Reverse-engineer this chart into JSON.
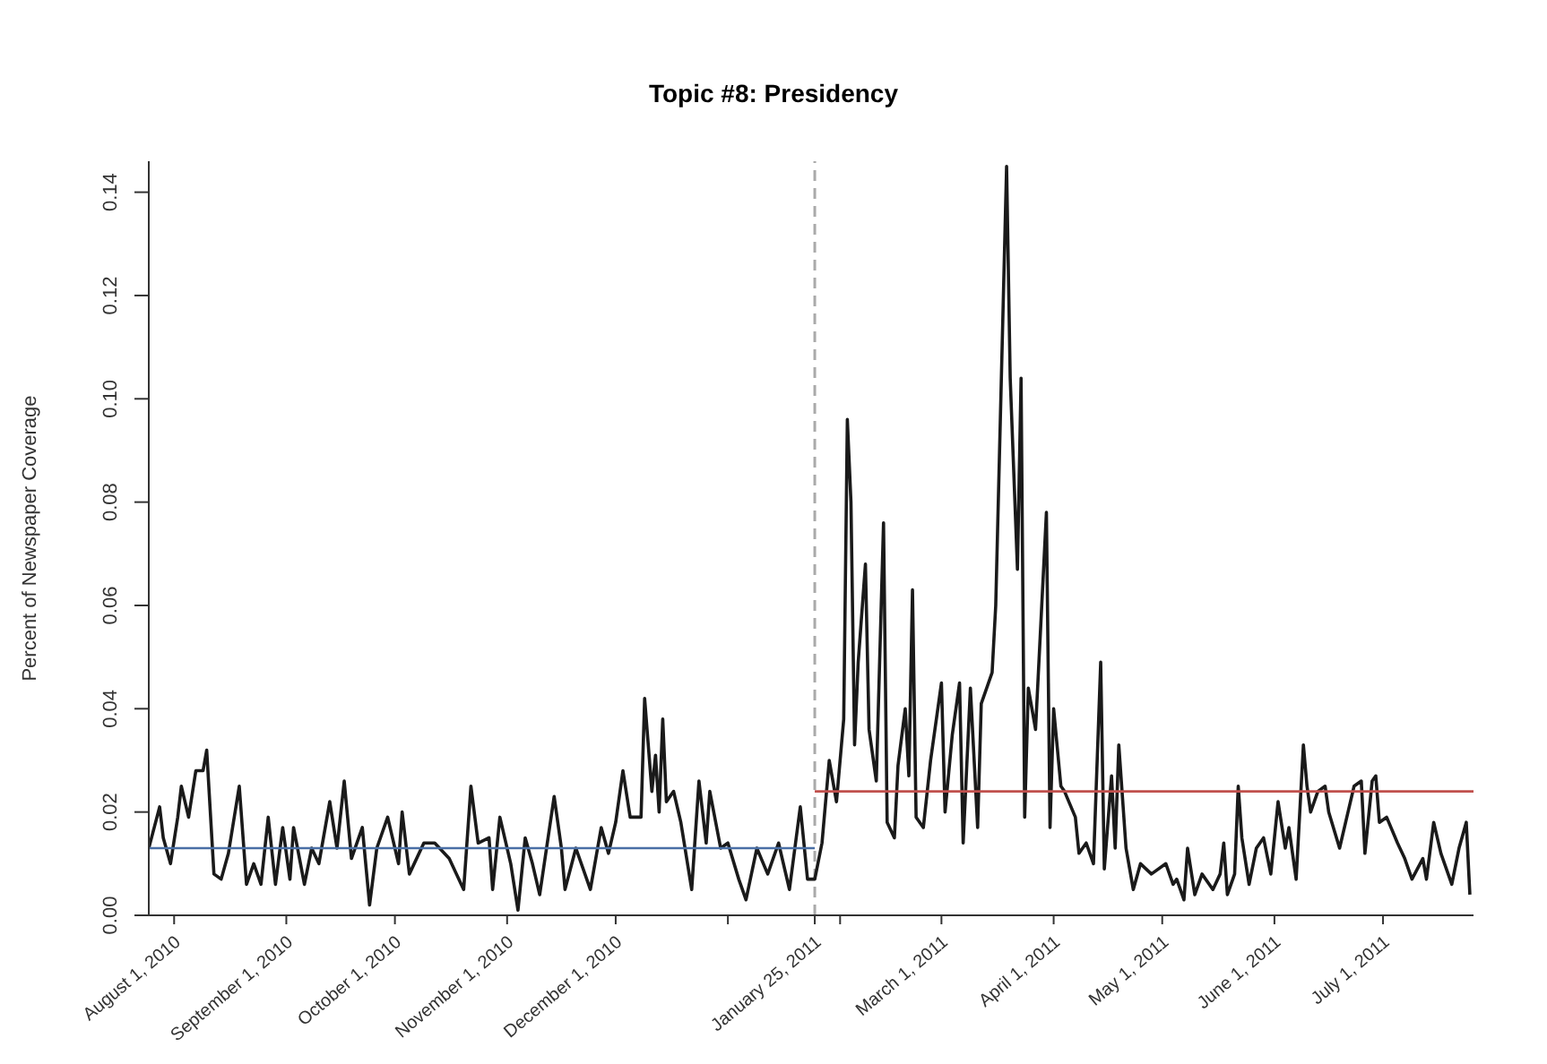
{
  "chart_data": {
    "type": "line",
    "title": "Topic #8: Presidency",
    "ylabel": "Percent of Newspaper Coverage",
    "xlim": [
      "2010-07-25",
      "2011-07-26"
    ],
    "xticks": [
      {
        "value": "2010-08-01",
        "label": "August 1, 2010"
      },
      {
        "value": "2010-09-01",
        "label": "September 1, 2010"
      },
      {
        "value": "2010-10-01",
        "label": "October 1, 2010"
      },
      {
        "value": "2010-11-01",
        "label": "November 1, 2010"
      },
      {
        "value": "2010-12-01",
        "label": "December 1, 2010"
      },
      {
        "value": "2011-01-01",
        "label": null
      },
      {
        "value": "2011-01-25",
        "label": "January 25, 2011"
      },
      {
        "value": "2011-02-01",
        "label": null
      },
      {
        "value": "2011-03-01",
        "label": "March 1, 2011"
      },
      {
        "value": "2011-04-01",
        "label": "April 1, 2011"
      },
      {
        "value": "2011-05-01",
        "label": "May 1, 2011"
      },
      {
        "value": "2011-06-01",
        "label": "June 1, 2011"
      },
      {
        "value": "2011-07-01",
        "label": "July 1, 2011"
      }
    ],
    "ylim": [
      0,
      0.146
    ],
    "yticks": [
      {
        "value": 0,
        "label": "0.00"
      },
      {
        "value": 0.02,
        "label": "0.02"
      },
      {
        "value": 0.04,
        "label": "0.04"
      },
      {
        "value": 0.06,
        "label": "0.06"
      },
      {
        "value": 0.08,
        "label": "0.08"
      },
      {
        "value": 0.1,
        "label": "0.10"
      },
      {
        "value": 0.12,
        "label": "0.12"
      },
      {
        "value": 0.14,
        "label": "0.14"
      }
    ],
    "series": [
      {
        "color": "#1a1a1a",
        "x": [
          "2010-07-25",
          "2010-07-28",
          "2010-07-29",
          "2010-07-31",
          "2010-08-02",
          "2010-08-03",
          "2010-08-05",
          "2010-08-07",
          "2010-08-09",
          "2010-08-10",
          "2010-08-12",
          "2010-08-14",
          "2010-08-16",
          "2010-08-19",
          "2010-08-21",
          "2010-08-23",
          "2010-08-25",
          "2010-08-27",
          "2010-08-29",
          "2010-08-31",
          "2010-09-02",
          "2010-09-03",
          "2010-09-06",
          "2010-09-08",
          "2010-09-10",
          "2010-09-13",
          "2010-09-15",
          "2010-09-17",
          "2010-09-19",
          "2010-09-22",
          "2010-09-24",
          "2010-09-26",
          "2010-09-29",
          "2010-10-02",
          "2010-10-03",
          "2010-10-05",
          "2010-10-09",
          "2010-10-12",
          "2010-10-16",
          "2010-10-20",
          "2010-10-22",
          "2010-10-24",
          "2010-10-27",
          "2010-10-28",
          "2010-10-30",
          "2010-11-02",
          "2010-11-04",
          "2010-11-06",
          "2010-11-08",
          "2010-11-10",
          "2010-11-14",
          "2010-11-16",
          "2010-11-17",
          "2010-11-20",
          "2010-11-24",
          "2010-11-26",
          "2010-11-27",
          "2010-11-29",
          "2010-12-01",
          "2010-12-03",
          "2010-12-05",
          "2010-12-08",
          "2010-12-09",
          "2010-12-11",
          "2010-12-12",
          "2010-12-13",
          "2010-12-14",
          "2010-12-15",
          "2010-12-17",
          "2010-12-19",
          "2010-12-22",
          "2010-12-24",
          "2010-12-26",
          "2010-12-27",
          "2010-12-30",
          "2011-01-01",
          "2011-01-04",
          "2011-01-06",
          "2011-01-09",
          "2011-01-12",
          "2011-01-15",
          "2011-01-18",
          "2011-01-21",
          "2011-01-23",
          "2011-01-25",
          "2011-01-27",
          "2011-01-29",
          "2011-01-31",
          "2011-02-02",
          "2011-02-03",
          "2011-02-04",
          "2011-02-05",
          "2011-02-06",
          "2011-02-08",
          "2011-02-09",
          "2011-02-11",
          "2011-02-13",
          "2011-02-14",
          "2011-02-16",
          "2011-02-17",
          "2011-02-19",
          "2011-02-20",
          "2011-02-21",
          "2011-02-22",
          "2011-02-24",
          "2011-02-26",
          "2011-03-01",
          "2011-03-02",
          "2011-03-04",
          "2011-03-06",
          "2011-03-07",
          "2011-03-09",
          "2011-03-11",
          "2011-03-12",
          "2011-03-15",
          "2011-03-16",
          "2011-03-19",
          "2011-03-20",
          "2011-03-22",
          "2011-03-23",
          "2011-03-24",
          "2011-03-25",
          "2011-03-27",
          "2011-03-30",
          "2011-03-31",
          "2011-04-01",
          "2011-04-03",
          "2011-04-04",
          "2011-04-07",
          "2011-04-08",
          "2011-04-10",
          "2011-04-12",
          "2011-04-14",
          "2011-04-15",
          "2011-04-17",
          "2011-04-18",
          "2011-04-19",
          "2011-04-21",
          "2011-04-23",
          "2011-04-25",
          "2011-04-28",
          "2011-05-02",
          "2011-05-04",
          "2011-05-05",
          "2011-05-07",
          "2011-05-08",
          "2011-05-10",
          "2011-05-12",
          "2011-05-15",
          "2011-05-17",
          "2011-05-18",
          "2011-05-19",
          "2011-05-21",
          "2011-05-22",
          "2011-05-23",
          "2011-05-25",
          "2011-05-27",
          "2011-05-29",
          "2011-05-31",
          "2011-06-02",
          "2011-06-04",
          "2011-06-05",
          "2011-06-07",
          "2011-06-09",
          "2011-06-10",
          "2011-06-11",
          "2011-06-13",
          "2011-06-15",
          "2011-06-16",
          "2011-06-19",
          "2011-06-21",
          "2011-06-23",
          "2011-06-25",
          "2011-06-26",
          "2011-06-28",
          "2011-06-29",
          "2011-06-30",
          "2011-07-02",
          "2011-07-05",
          "2011-07-07",
          "2011-07-09",
          "2011-07-12",
          "2011-07-13",
          "2011-07-15",
          "2011-07-17",
          "2011-07-20",
          "2011-07-22",
          "2011-07-24",
          "2011-07-25"
        ],
        "values": [
          0.013,
          0.021,
          0.015,
          0.01,
          0.019,
          0.025,
          0.019,
          0.028,
          0.028,
          0.032,
          0.008,
          0.007,
          0.012,
          0.025,
          0.006,
          0.01,
          0.006,
          0.019,
          0.006,
          0.017,
          0.007,
          0.017,
          0.006,
          0.013,
          0.01,
          0.022,
          0.013,
          0.026,
          0.011,
          0.017,
          0.002,
          0.013,
          0.019,
          0.01,
          0.02,
          0.008,
          0.014,
          0.014,
          0.011,
          0.005,
          0.025,
          0.014,
          0.015,
          0.005,
          0.019,
          0.01,
          0.001,
          0.015,
          0.01,
          0.004,
          0.023,
          0.013,
          0.005,
          0.013,
          0.005,
          0.013,
          0.017,
          0.012,
          0.018,
          0.028,
          0.019,
          0.019,
          0.042,
          0.024,
          0.031,
          0.02,
          0.038,
          0.022,
          0.024,
          0.018,
          0.005,
          0.026,
          0.014,
          0.024,
          0.013,
          0.014,
          0.007,
          0.003,
          0.013,
          0.008,
          0.014,
          0.005,
          0.021,
          0.007,
          0.007,
          0.014,
          0.03,
          0.022,
          0.038,
          0.096,
          0.08,
          0.033,
          0.049,
          0.068,
          0.036,
          0.026,
          0.076,
          0.018,
          0.015,
          0.029,
          0.04,
          0.027,
          0.063,
          0.019,
          0.017,
          0.03,
          0.045,
          0.02,
          0.035,
          0.045,
          0.014,
          0.044,
          0.017,
          0.041,
          0.047,
          0.06,
          0.145,
          0.104,
          0.067,
          0.104,
          0.019,
          0.044,
          0.036,
          0.078,
          0.017,
          0.04,
          0.025,
          0.024,
          0.019,
          0.012,
          0.014,
          0.01,
          0.049,
          0.009,
          0.027,
          0.013,
          0.033,
          0.013,
          0.005,
          0.01,
          0.008,
          0.01,
          0.006,
          0.007,
          0.003,
          0.013,
          0.004,
          0.008,
          0.005,
          0.008,
          0.014,
          0.004,
          0.008,
          0.025,
          0.015,
          0.006,
          0.013,
          0.015,
          0.008,
          0.022,
          0.013,
          0.017,
          0.007,
          0.033,
          0.025,
          0.02,
          0.024,
          0.025,
          0.02,
          0.013,
          0.019,
          0.025,
          0.026,
          0.012,
          0.026,
          0.027,
          0.018,
          0.019,
          0.014,
          0.011,
          0.007,
          0.011,
          0.007,
          0.018,
          0.012,
          0.006,
          0.013,
          0.018,
          0.004
        ]
      },
      {
        "color": "#4a6fa5",
        "x": [
          "2010-07-25",
          "2011-01-25"
        ],
        "values": [
          0.013,
          0.013
        ]
      },
      {
        "color": "#c0504d",
        "x": [
          "2011-01-25",
          "2011-07-26"
        ],
        "values": [
          0.024,
          0.024
        ]
      }
    ],
    "ref_lines": [
      {
        "axis": "x",
        "value": "2011-01-25",
        "label": null,
        "color": "#aaaaaa",
        "line_style": "dashed"
      }
    ]
  }
}
